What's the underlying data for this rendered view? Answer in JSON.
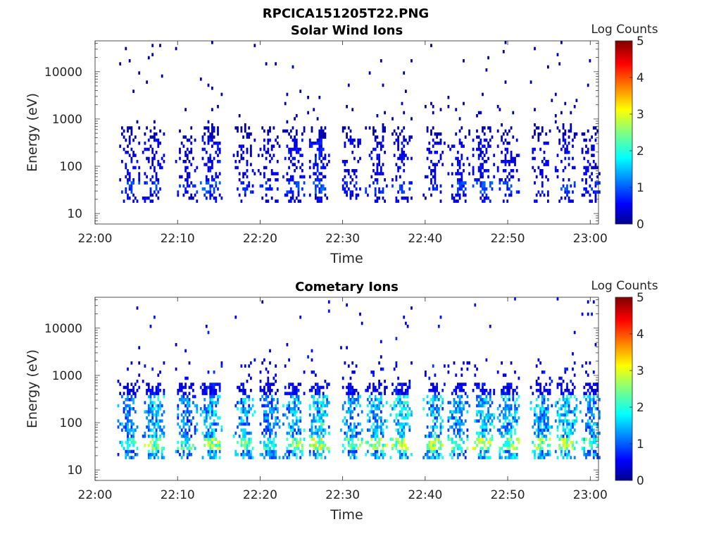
{
  "figure_title": "RPCICA151205T22.PNG",
  "chart_data": [
    {
      "type": "heatmap",
      "title": "Solar Wind Ions",
      "xlabel": "Time",
      "ylabel": "Energy (eV)",
      "x_ticks": [
        "22:00",
        "22:10",
        "22:20",
        "22:30",
        "22:40",
        "22:50",
        "23:00"
      ],
      "x_range": [
        "22:00",
        "23:01"
      ],
      "y_scale": "log",
      "y_ticks": [
        "10",
        "100",
        "1000",
        "10000"
      ],
      "y_range": [
        6,
        45000
      ],
      "colorbar": {
        "label": "Log Counts",
        "ticks": [
          "0",
          "1",
          "2",
          "3",
          "4",
          "5"
        ],
        "range": [
          0,
          5
        ],
        "colormap": "jet"
      },
      "grid": false,
      "bursts": [
        {
          "t": "22:04",
          "level": 0.55,
          "density": 0.45
        },
        {
          "t": "22:07",
          "level": 0.55,
          "density": 0.45
        },
        {
          "t": "22:11",
          "level": 0.5,
          "density": 0.35
        },
        {
          "t": "22:14",
          "level": 0.65,
          "density": 0.6
        },
        {
          "t": "22:18",
          "level": 0.5,
          "density": 0.35
        },
        {
          "t": "22:21",
          "level": 0.5,
          "density": 0.35
        },
        {
          "t": "22:24",
          "level": 0.6,
          "density": 0.5
        },
        {
          "t": "22:27",
          "level": 0.65,
          "density": 0.6
        },
        {
          "t": "22:31",
          "level": 0.5,
          "density": 0.35
        },
        {
          "t": "22:34",
          "level": 0.55,
          "density": 0.45
        },
        {
          "t": "22:37",
          "level": 0.55,
          "density": 0.4
        },
        {
          "t": "22:41",
          "level": 0.5,
          "density": 0.4
        },
        {
          "t": "22:44",
          "level": 0.55,
          "density": 0.4
        },
        {
          "t": "22:47",
          "level": 0.6,
          "density": 0.5
        },
        {
          "t": "22:50",
          "level": 0.55,
          "density": 0.4
        },
        {
          "t": "22:54",
          "level": 0.5,
          "density": 0.35
        },
        {
          "t": "22:57",
          "level": 0.6,
          "density": 0.45
        },
        {
          "t": "23:00",
          "level": 0.5,
          "density": 0.35
        }
      ]
    },
    {
      "type": "heatmap",
      "title": "Cometary Ions",
      "xlabel": "Time",
      "ylabel": "Energy (eV)",
      "x_ticks": [
        "22:00",
        "22:10",
        "22:20",
        "22:30",
        "22:40",
        "22:50",
        "23:00"
      ],
      "x_range": [
        "22:00",
        "23:01"
      ],
      "y_scale": "log",
      "y_ticks": [
        "10",
        "100",
        "1000",
        "10000"
      ],
      "y_range": [
        6,
        45000
      ],
      "colorbar": {
        "label": "Log Counts",
        "ticks": [
          "0",
          "1",
          "2",
          "3",
          "4",
          "5"
        ],
        "range": [
          0,
          5
        ],
        "colormap": "jet"
      },
      "grid": false,
      "bursts": [
        {
          "t": "22:04",
          "level": 1.3,
          "density": 0.7
        },
        {
          "t": "22:07",
          "level": 1.6,
          "density": 0.8
        },
        {
          "t": "22:11",
          "level": 1.3,
          "density": 0.7
        },
        {
          "t": "22:14",
          "level": 1.7,
          "density": 0.85
        },
        {
          "t": "22:18",
          "level": 1.5,
          "density": 0.75
        },
        {
          "t": "22:21",
          "level": 1.3,
          "density": 0.7
        },
        {
          "t": "22:24",
          "level": 1.6,
          "density": 0.8
        },
        {
          "t": "22:27",
          "level": 1.8,
          "density": 0.85
        },
        {
          "t": "22:31",
          "level": 1.5,
          "density": 0.75
        },
        {
          "t": "22:34",
          "level": 1.6,
          "density": 0.8
        },
        {
          "t": "22:37",
          "level": 1.7,
          "density": 0.8
        },
        {
          "t": "22:41",
          "level": 1.7,
          "density": 0.8
        },
        {
          "t": "22:44",
          "level": 1.5,
          "density": 0.75
        },
        {
          "t": "22:47",
          "level": 1.7,
          "density": 0.8
        },
        {
          "t": "22:50",
          "level": 1.6,
          "density": 0.8
        },
        {
          "t": "22:54",
          "level": 1.6,
          "density": 0.8
        },
        {
          "t": "22:57",
          "level": 1.7,
          "density": 0.8
        },
        {
          "t": "23:00",
          "level": 1.4,
          "density": 0.7
        }
      ]
    }
  ]
}
